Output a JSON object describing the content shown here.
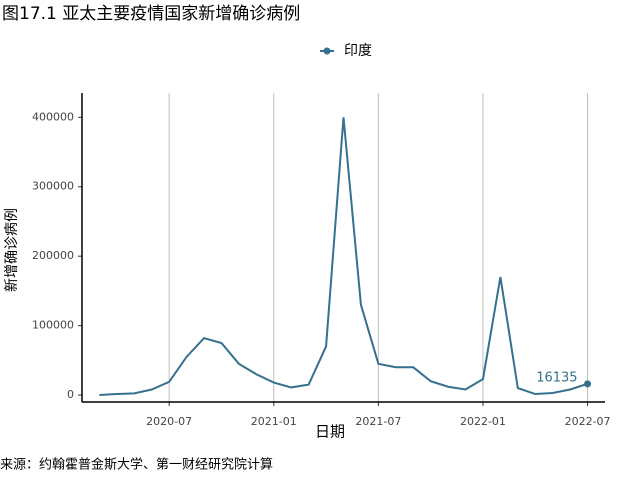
{
  "chart_data": {
    "type": "line",
    "title": "图17.1 亚太主要疫情国家新增确诊病例",
    "x_label": "日期",
    "y_label": "新增确诊病例",
    "source": "来源：约翰霍普金斯大学、第一财经研究院计算",
    "x": [
      "2020-03",
      "2020-04",
      "2020-05",
      "2020-06",
      "2020-07",
      "2020-08",
      "2020-09",
      "2020-10",
      "2020-11",
      "2020-12",
      "2021-01",
      "2021-02",
      "2021-03",
      "2021-04",
      "2021-05",
      "2021-06",
      "2021-07",
      "2021-08",
      "2021-09",
      "2021-10",
      "2021-11",
      "2021-12",
      "2022-01",
      "2022-02",
      "2022-03",
      "2022-04",
      "2022-05",
      "2022-06",
      "2022-07"
    ],
    "series": [
      {
        "name": "印度",
        "color": "#35708f",
        "values": [
          0,
          1500,
          2500,
          8000,
          19000,
          55000,
          82000,
          75000,
          45000,
          30000,
          18000,
          11000,
          15000,
          70000,
          400000,
          130000,
          45000,
          40000,
          40000,
          20000,
          12000,
          8000,
          23000,
          170000,
          10000,
          1500,
          3000,
          8000,
          16135
        ]
      }
    ],
    "xlim": [
      "2020-02",
      "2022-08"
    ],
    "xticks": [
      "2020-07",
      "2021-01",
      "2021-07",
      "2022-01",
      "2022-07"
    ],
    "ylim": [
      -10000,
      435000
    ],
    "yticks": [
      0,
      100000,
      200000,
      300000,
      400000
    ],
    "grid": "x"
  }
}
